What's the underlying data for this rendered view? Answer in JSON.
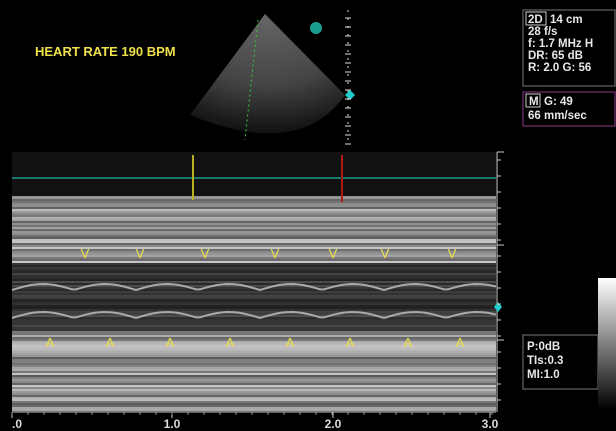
{
  "header": {
    "title": "HEART RATE 190 BPM"
  },
  "params_2d": {
    "mode": "2D",
    "lines": [
      "14 cm",
      "28 f/s",
      "f: 1.7 MHz H",
      "DR: 65 dB",
      "R: 2.0   G: 56"
    ]
  },
  "params_m": {
    "mode": "M",
    "lines": [
      "G: 49",
      "66 mm/sec"
    ]
  },
  "params_output": {
    "lines": [
      "P:0dB",
      "TIs:0.3",
      "MI:1.0"
    ]
  },
  "markers": {
    "v": [
      "V",
      "V",
      "V",
      "V",
      "V",
      "V",
      "V"
    ],
    "a": [
      "A",
      "A",
      "A",
      "A",
      "A",
      "A",
      "A",
      "A"
    ]
  },
  "time_axis": {
    "labels": [
      ".0",
      "1.0",
      "2.0",
      "3.0"
    ]
  }
}
